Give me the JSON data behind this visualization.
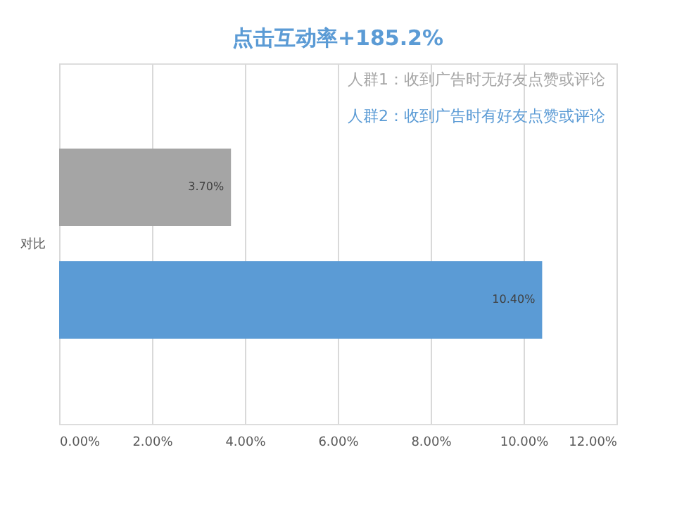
{
  "chart_data": {
    "type": "bar",
    "orientation": "horizontal",
    "title": "点击互动率+185.2%",
    "categories": [
      "对比"
    ],
    "series": [
      {
        "name": "人群1：收到广告时无好友点赞或评论",
        "color": "#a5a5a5",
        "values": [
          3.7
        ],
        "value_labels": [
          "3.70%"
        ]
      },
      {
        "name": "人群2：收到广告时有好友点赞或评论",
        "color": "#5b9bd5",
        "values": [
          10.4
        ],
        "value_labels": [
          "10.40%"
        ]
      }
    ],
    "xlim": [
      0,
      12
    ],
    "xticks": [
      {
        "value": 0,
        "label": "0.00%"
      },
      {
        "value": 2,
        "label": "2.00%"
      },
      {
        "value": 4,
        "label": "4.00%"
      },
      {
        "value": 6,
        "label": "6.00%"
      },
      {
        "value": 8,
        "label": "8.00%"
      },
      {
        "value": 10,
        "label": "10.00%"
      },
      {
        "value": 12,
        "label": "12.00%"
      }
    ],
    "grid": "x",
    "legend": "top right"
  }
}
